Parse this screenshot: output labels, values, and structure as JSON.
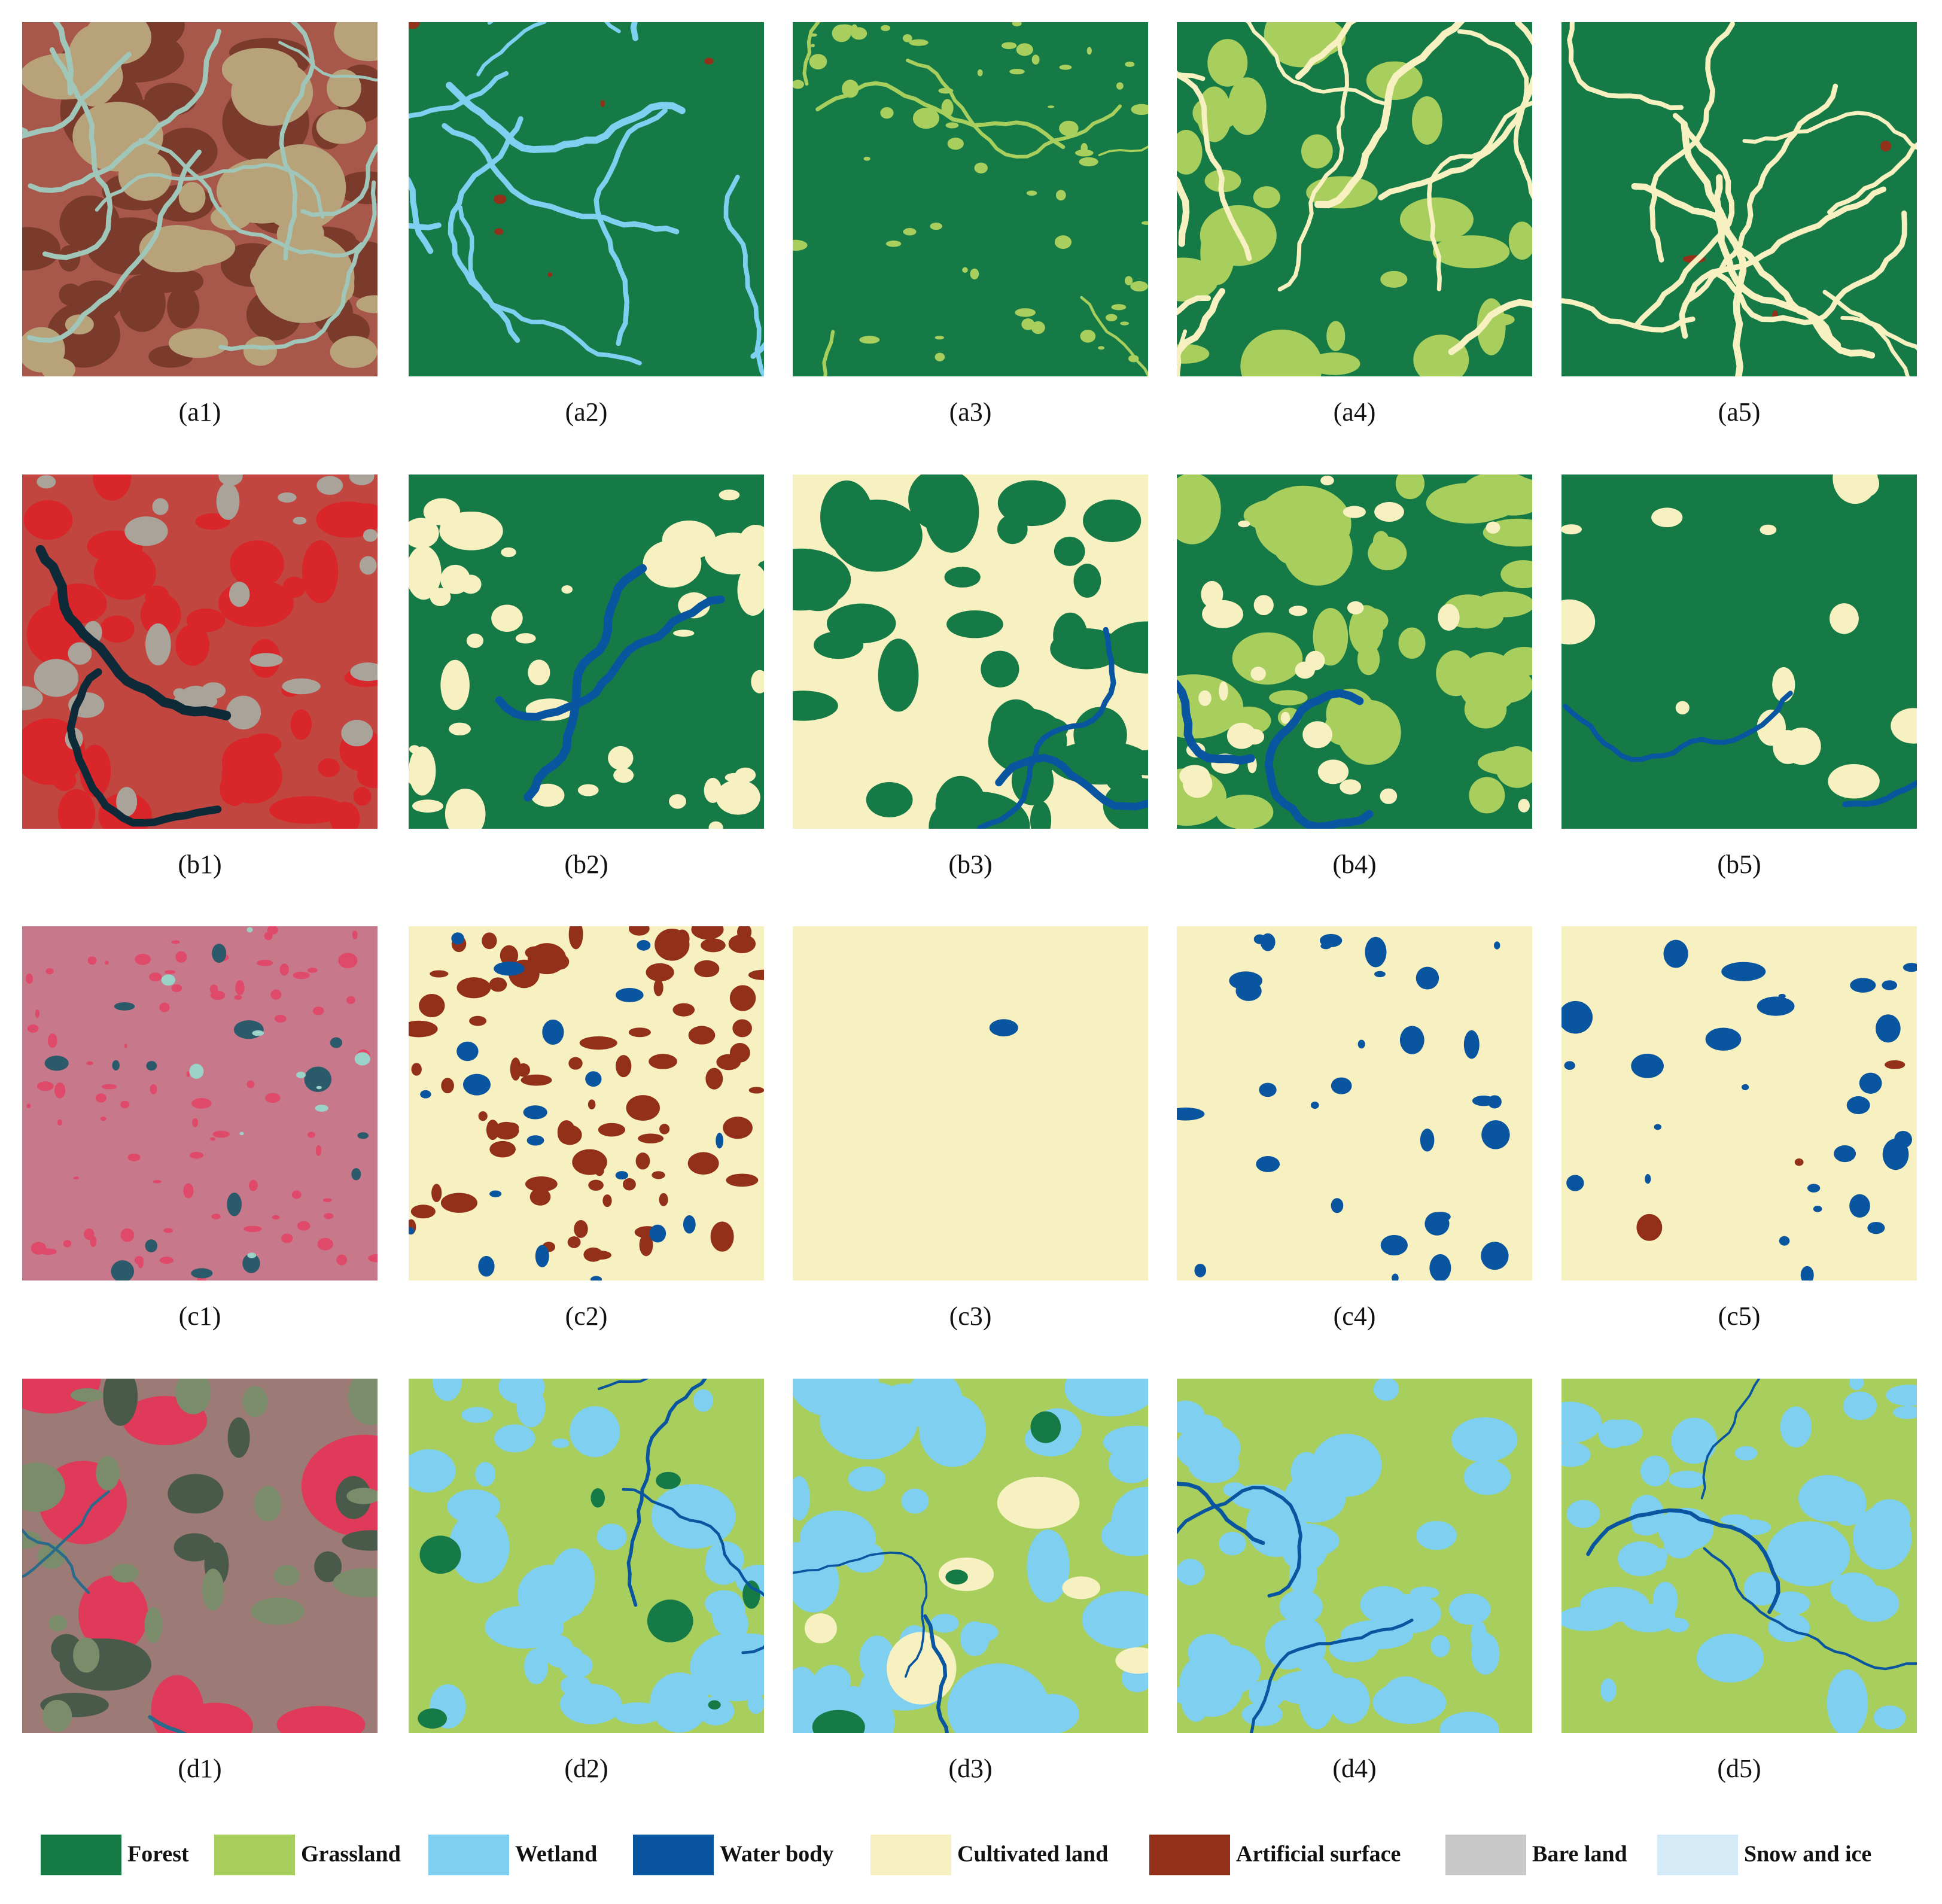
{
  "panels": [
    "(a1)",
    "(a2)",
    "(a3)",
    "(a4)",
    "(a5)",
    "(b1)",
    "(b2)",
    "(b3)",
    "(b4)",
    "(b5)",
    "(c1)",
    "(c2)",
    "(c3)",
    "(c4)",
    "(c5)",
    "(d1)",
    "(d2)",
    "(d3)",
    "(d4)",
    "(d5)"
  ],
  "legend": [
    {
      "name": "Forest",
      "color": "#157a45"
    },
    {
      "name": "Grassland",
      "color": "#a8cf5e"
    },
    {
      "name": "Wetland",
      "color": "#7ecff0"
    },
    {
      "name": "Water body",
      "color": "#0a55a0"
    },
    {
      "name": "Cultivated land",
      "color": "#f7f0c0"
    },
    {
      "name": "Artificial surface",
      "color": "#93301a"
    },
    {
      "name": "Bare land",
      "color": "#c8c8c8"
    },
    {
      "name": "Snow and ice",
      "color": "#d4ebf7"
    }
  ]
}
